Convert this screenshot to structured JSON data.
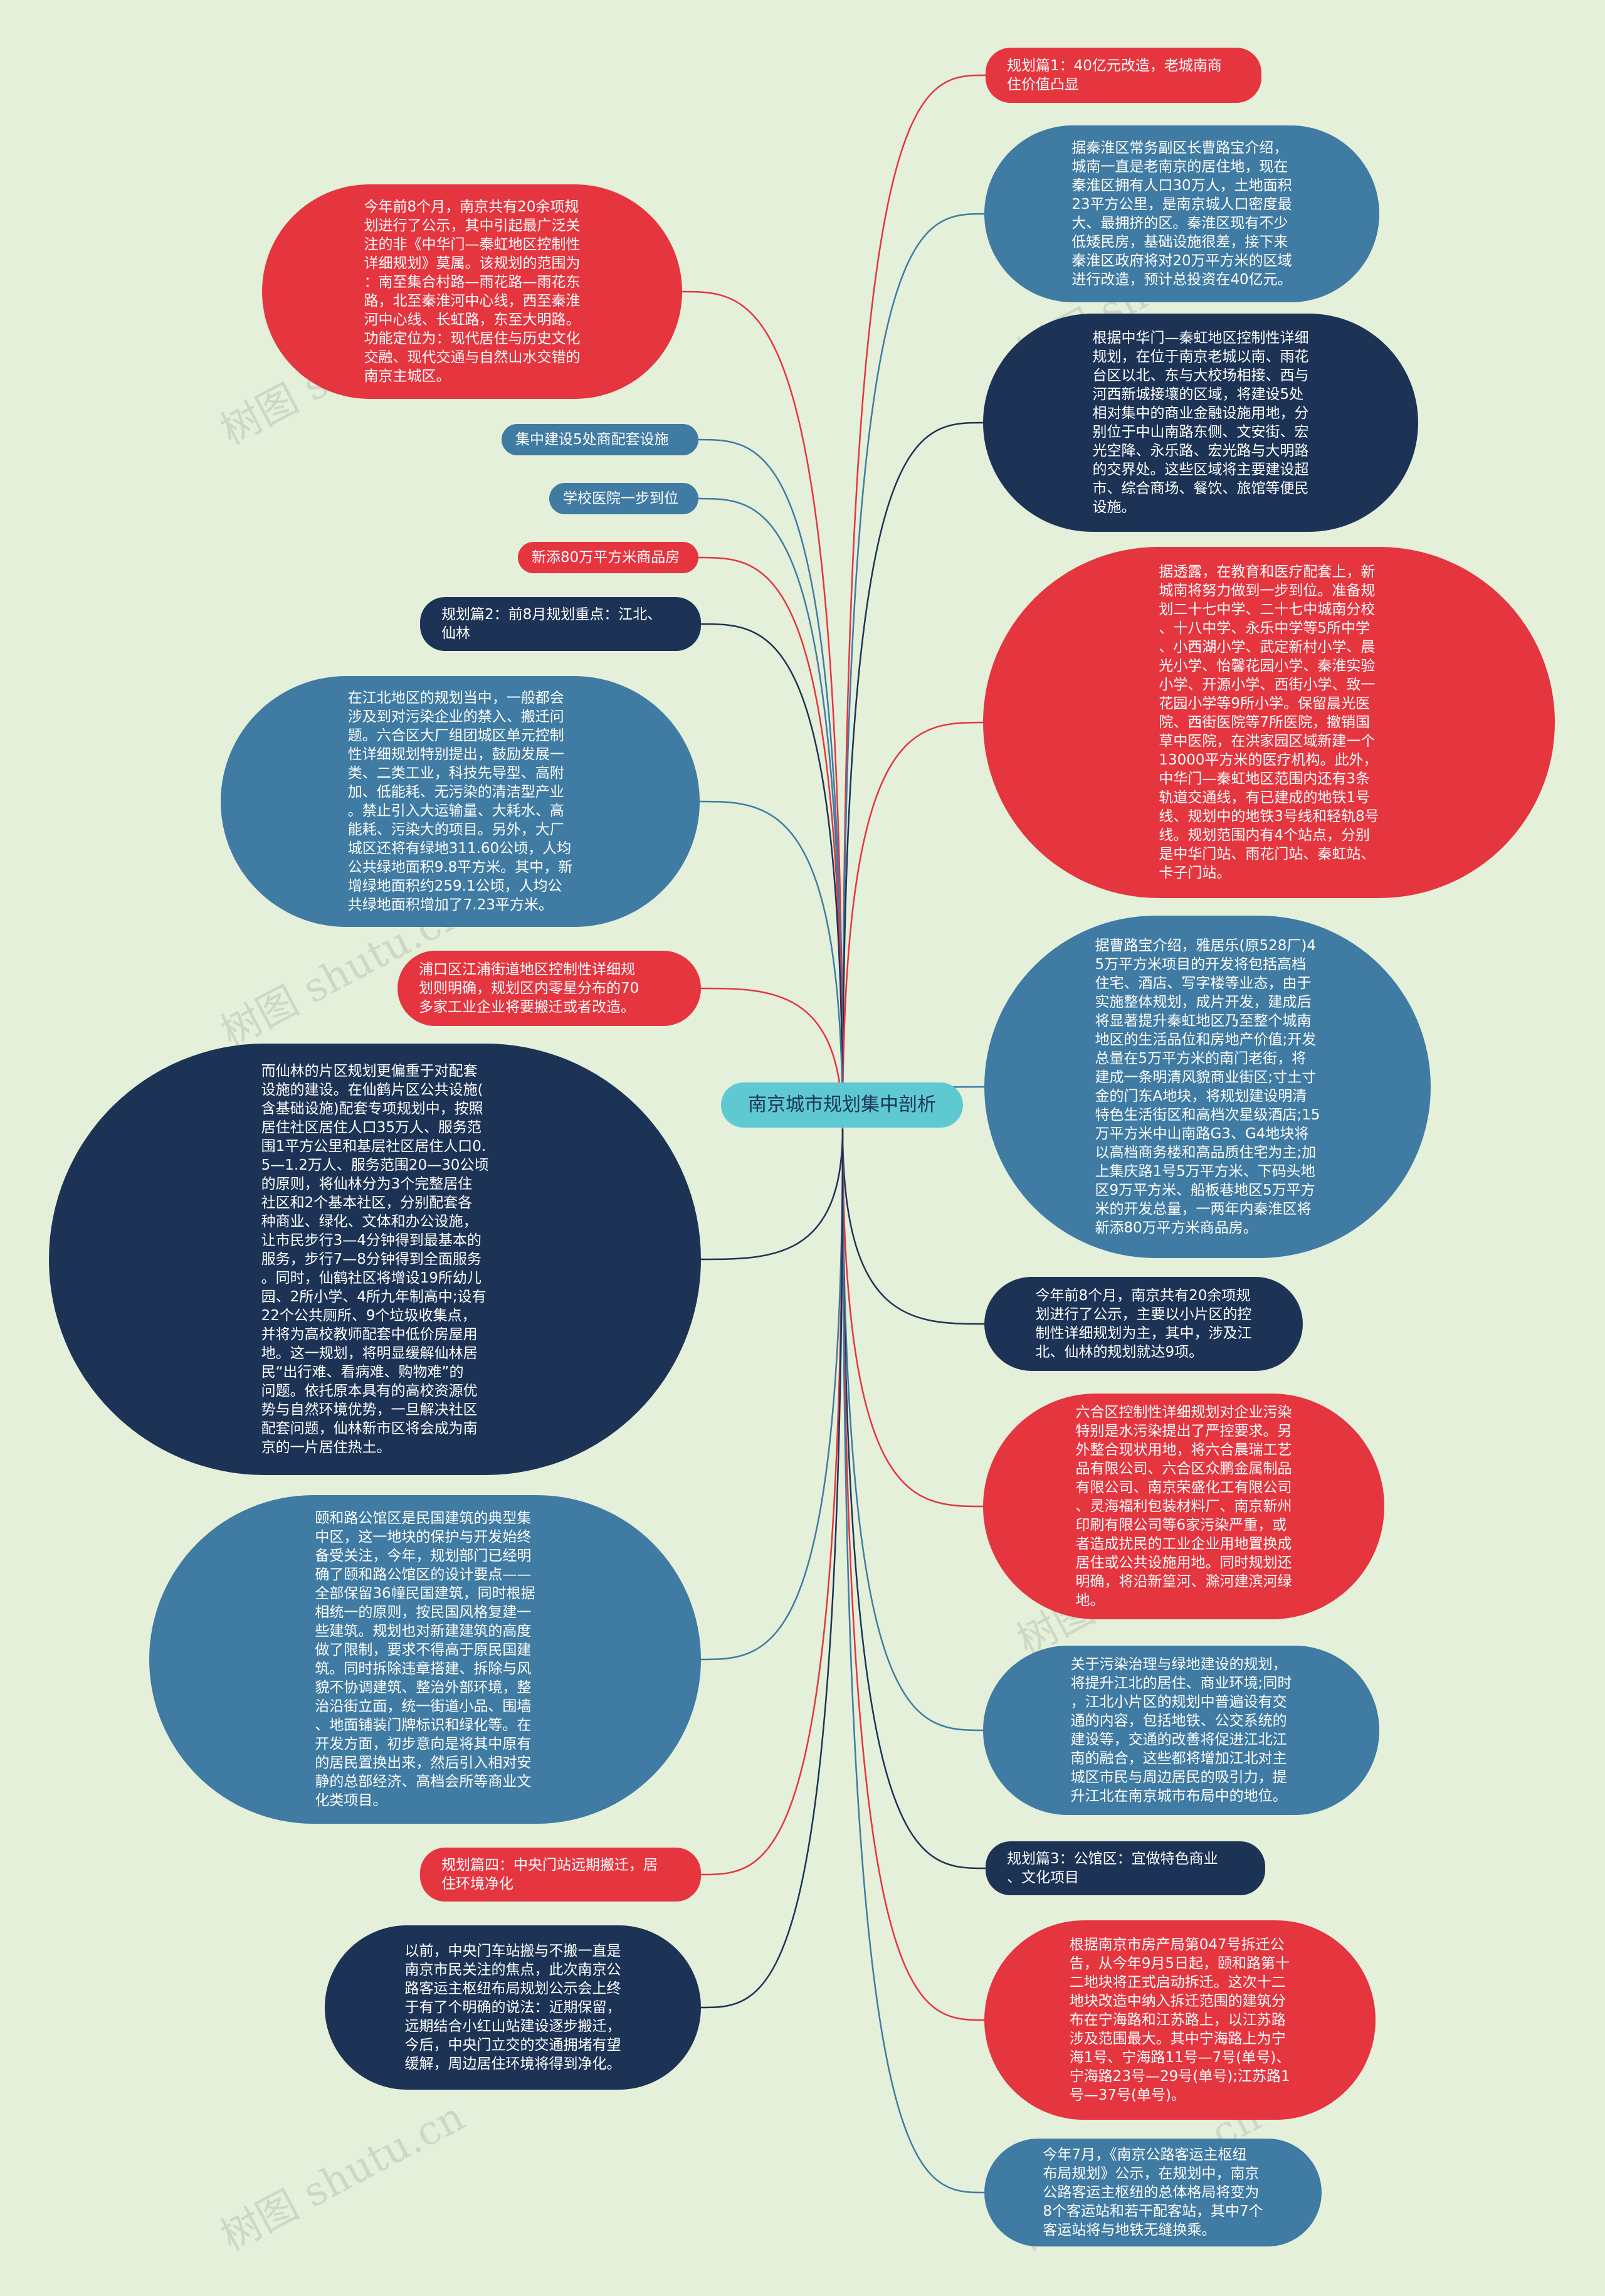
{
  "center": {
    "label": "南京城市规划集中剖析"
  },
  "watermark": "树图 shutu.cn",
  "colors": {
    "background": "#e4f0da",
    "red": "#e5353f",
    "blue": "#3f7ba3",
    "navy": "#1c3356",
    "center": "#5ec9d1"
  },
  "nodes": [
    {
      "id": "n01",
      "side": "right",
      "color": "red",
      "text": "规划篇1：40亿元改造，老城南商\n住价值凸显"
    },
    {
      "id": "n02",
      "side": "right",
      "color": "blue",
      "text": "据秦淮区常务副区长曹路宝介绍，\n城南一直是老南京的居住地，现在\n秦淮区拥有人口30万人，土地面积\n23平方公里，是南京城人口密度最\n大、最拥挤的区。秦淮区现有不少\n低矮民房，基础设施很差，接下来\n秦淮区政府将对20万平方米的区域\n进行改造，预计总投资在40亿元。"
    },
    {
      "id": "n03",
      "side": "right",
      "color": "navy",
      "text": "根据中华门—秦虹地区控制性详细\n规划，在位于南京老城以南、雨花\n台区以北、东与大校场相接、西与\n河西新城接壤的区域，将建设5处\n相对集中的商业金融设施用地，分\n别位于中山南路东侧、文安街、宏\n光空降、永乐路、宏光路与大明路\n的交界处。这些区域将主要建设超\n市、综合商场、餐饮、旅馆等便民\n设施。"
    },
    {
      "id": "n04",
      "side": "right",
      "color": "red",
      "text": "据透露，在教育和医疗配套上，新\n城南将努力做到一步到位。准备规\n划二十七中学、二十七中城南分校\n、十八中学、永乐中学等5所中学\n、小西湖小学、武定新村小学、晨\n光小学、怡馨花园小学、秦淮实验\n小学、开源小学、西街小学、致一\n花园小学等9所小学。保留晨光医\n院、西街医院等7所医院，撤销国\n草中医院，在洪家园区域新建一个\n13000平方米的医疗机构。此外，\n中华门—秦虹地区范围内还有3条\n轨道交通线，有已建成的地铁1号\n线、规划中的地铁3号线和轻轨8号\n线。规划范围内有4个站点，分别\n是中华门站、雨花门站、秦虹站、\n卡子门站。"
    },
    {
      "id": "n05",
      "side": "right",
      "color": "blue",
      "text": "据曹路宝介绍，雅居乐(原528厂)4\n5万平方米项目的开发将包括高档\n住宅、酒店、写字楼等业态，由于\n实施整体规划，成片开发，建成后\n将显著提升秦虹地区乃至整个城南\n地区的生活品位和房地产价值;开发\n总量在5万平方米的南门老街，将\n建成一条明清风貌商业街区;寸土寸\n金的门东A地块，将规划建设明清\n特色生活街区和高档次星级酒店;15\n万平方米中山南路G3、G4地块将\n以高档商务楼和高品质住宅为主;加\n上集庆路1号5万平方米、下码头地\n区9万平方米、船板巷地区5万平方\n米的开发总量，一两年内秦淮区将\n新添80万平方米商品房。"
    },
    {
      "id": "n06",
      "side": "right",
      "color": "navy",
      "text": "今年前8个月，南京共有20余项规\n划进行了公示，主要以小片区的控\n制性详细规划为主，其中，涉及江\n北、仙林的规划就达9项。"
    },
    {
      "id": "n07",
      "side": "right",
      "color": "red",
      "text": "六合区控制性详细规划对企业污染\n特别是水污染提出了严控要求。另\n外整合现状用地，将六合晨瑞工艺\n品有限公司、六合区众鹏金属制品\n有限公司、南京荣盛化工有限公司\n、灵海福利包装材料厂、南京新州\n印刷有限公司等6家污染严重，或\n者造成扰民的工业企业用地置换成\n居住或公共设施用地。同时规划还\n明确，将沿新篁河、滁河建滨河绿\n地。"
    },
    {
      "id": "n08",
      "side": "right",
      "color": "blue",
      "text": "关于污染治理与绿地建设的规划，\n将提升江北的居住、商业环境;同时\n，江北小片区的规划中普遍设有交\n通的内容，包括地铁、公交系统的\n建设等，交通的改善将促进江北江\n南的融合，这些都将增加江北对主\n城区市民与周边居民的吸引力，提\n升江北在南京城市布局中的地位。"
    },
    {
      "id": "n09",
      "side": "right",
      "color": "navy",
      "text": "规划篇3：公馆区：宜做特色商业\n、文化项目"
    },
    {
      "id": "n10",
      "side": "right",
      "color": "red",
      "text": "根据南京市房产局第047号拆迁公\n告，从今年9月5日起，颐和路第十\n二地块将正式启动拆迁。这次十二\n地块改造中纳入拆迁范围的建筑分\n布在宁海路和江苏路上，以江苏路\n涉及范围最大。其中宁海路上为宁\n海1号、宁海路11号—7号(单号)、\n宁海路23号—29号(单号);江苏路1\n号—37号(单号)。"
    },
    {
      "id": "n11",
      "side": "right",
      "color": "blue",
      "text": "今年7月，《南京公路客运主枢纽\n布局规划》公示，在规划中，南京\n公路客运主枢纽的总体格局将变为\n8个客运站和若干配客站，其中7个\n客运站将与地铁无缝换乘。"
    },
    {
      "id": "n12",
      "side": "left",
      "color": "red",
      "text": "今年前8个月，南京共有20余项规\n划进行了公示，其中引起最广泛关\n注的非《中华门—秦虹地区控制性\n详细规划》莫属。该规划的范围为\n：南至集合村路—雨花路—雨花东\n路，北至秦淮河中心线，西至秦淮\n河中心线、长虹路，东至大明路。\n功能定位为：现代居住与历史文化\n交融、现代交通与自然山水交错的\n南京主城区。"
    },
    {
      "id": "n13",
      "side": "left",
      "color": "blue",
      "text": "集中建设5处商配套设施"
    },
    {
      "id": "n14",
      "side": "left",
      "color": "blue",
      "text": "学校医院一步到位"
    },
    {
      "id": "n15",
      "side": "left",
      "color": "red",
      "text": "新添80万平方米商品房"
    },
    {
      "id": "n16",
      "side": "left",
      "color": "navy",
      "text": "规划篇2：前8月规划重点：江北、\n仙林"
    },
    {
      "id": "n17",
      "side": "left",
      "color": "blue",
      "text": "在江北地区的规划当中，一般都会\n涉及到对污染企业的禁入、搬迁问\n题。六合区大厂组团城区单元控制\n性详细规划特别提出，鼓励发展一\n类、二类工业，科技先导型、高附\n加、低能耗、无污染的清洁型产业\n。禁止引入大运输量、大耗水、高\n能耗、污染大的项目。另外，大厂\n城区还将有绿地311.60公顷，人均\n公共绿地面积9.8平方米。其中，新\n增绿地面积约259.1公顷，人均公\n共绿地面积增加了7.23平方米。"
    },
    {
      "id": "n18",
      "side": "left",
      "color": "red",
      "text": "浦口区江浦街道地区控制性详细规\n划则明确，规划区内零星分布的70\n多家工业企业将要搬迁或者改造。"
    },
    {
      "id": "n19",
      "side": "left",
      "color": "navy",
      "text": "而仙林的片区规划更偏重于对配套\n设施的建设。在仙鹤片区公共设施(\n含基础设施)配套专项规划中，按照\n居住社区居住人口35万人、服务范\n围1平方公里和基层社区居住人口0.\n5—1.2万人、服务范围20—30公顷\n的原则，将仙林分为3个完整居住\n社区和2个基本社区，分别配套各\n种商业、绿化、文体和办公设施，\n让市民步行3—4分钟得到最基本的\n服务，步行7—8分钟得到全面服务\n。同时，仙鹤社区将增设19所幼儿\n园、2所小学、4所九年制高中;设有\n22个公共厕所、9个垃圾收集点，\n并将为高校教师配套中低价房屋用\n地。这一规划，将明显缓解仙林居\n民“出行难、看病难、购物难”的\n问题。依托原本具有的高校资源优\n势与自然环境优势，一旦解决社区\n配套问题，仙林新市区将会成为南\n京的一片居住热土。"
    },
    {
      "id": "n20",
      "side": "left",
      "color": "blue",
      "text": "颐和路公馆区是民国建筑的典型集\n中区，这一地块的保护与开发始终\n备受关注，今年，规划部门已经明\n确了颐和路公馆区的设计要点——\n全部保留36幢民国建筑，同时根据\n相统一的原则，按民国风格复建一\n些建筑。规划也对新建建筑的高度\n做了限制，要求不得高于原民国建\n筑。同时拆除违章搭建、拆除与风\n貌不协调建筑、整治外部环境，整\n治沿街立面，统一街道小品、围墙\n、地面铺装门牌标识和绿化等。在\n开发方面，初步意向是将其中原有\n的居民置换出来，然后引入相对安\n静的总部经济、高档会所等商业文\n化类项目。"
    },
    {
      "id": "n21",
      "side": "left",
      "color": "red",
      "text": "规划篇四：中央门站远期搬迁，居\n住环境净化"
    },
    {
      "id": "n22",
      "side": "left",
      "color": "navy",
      "text": "以前，中央门车站搬与不搬一直是\n南京市民关注的焦点，此次南京公\n路客运主枢纽布局规划公示会上终\n于有了个明确的说法：近期保留，\n远期结合小红山站建设逐步搬迁，\n今后，中央门立交的交通拥堵有望\n缓解，周边居住环境将得到净化。"
    }
  ]
}
